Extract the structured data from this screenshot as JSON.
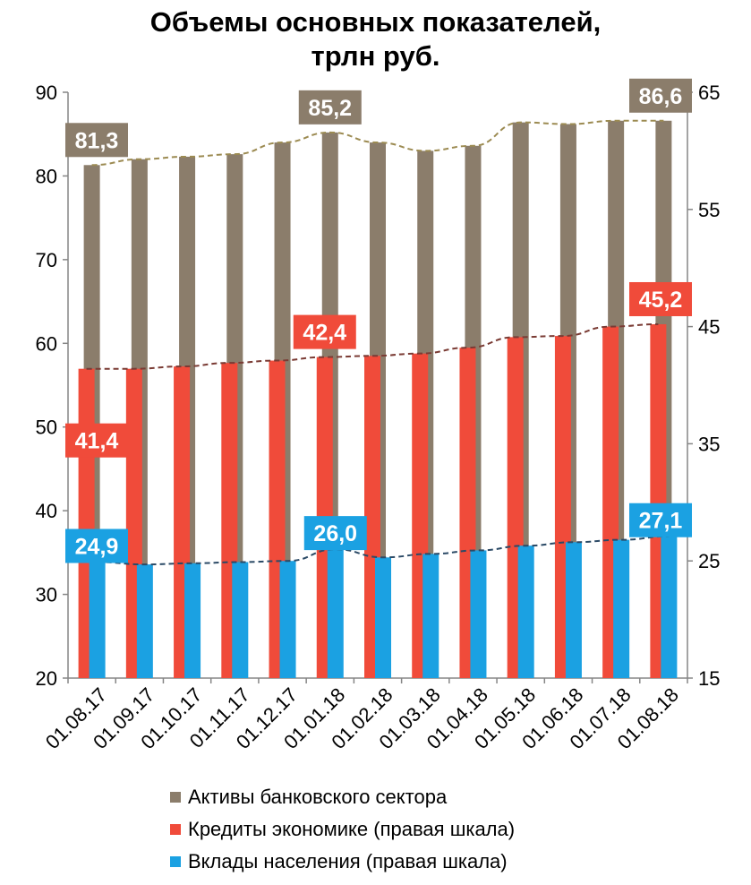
{
  "chart_data": {
    "type": "bar",
    "title_lines": [
      "Объемы основных показателей,",
      "трлн руб."
    ],
    "categories": [
      "01.08.17",
      "01.09.17",
      "01.10.17",
      "01.11.17",
      "01.12.17",
      "01.01.18",
      "01.02.18",
      "01.03.18",
      "01.04.18",
      "01.05.18",
      "01.06.18",
      "01.07.18",
      "01.08.18"
    ],
    "left_axis": {
      "ylim": [
        20,
        90
      ],
      "ticks": [
        "20",
        "30",
        "40",
        "50",
        "60",
        "70",
        "80",
        "90"
      ]
    },
    "right_axis": {
      "ylim": [
        15,
        65
      ],
      "ticks": [
        "15",
        "25",
        "35",
        "45",
        "55",
        "65"
      ]
    },
    "series": [
      {
        "name": "Активы банковского сектора",
        "axis": "left",
        "color": "#8b7d6b",
        "values": [
          81.3,
          82.0,
          82.3,
          82.6,
          84.0,
          85.2,
          84.0,
          83.0,
          83.6,
          86.4,
          86.2,
          86.6,
          86.6
        ],
        "labels": [
          {
            "index": 0,
            "text": "81,3"
          },
          {
            "index": 5,
            "text": "85,2"
          },
          {
            "index": 12,
            "text": "86,6"
          }
        ]
      },
      {
        "name": "Кредиты экономике (правая шкала)",
        "axis": "right",
        "color": "#f04b3a",
        "values": [
          41.4,
          41.4,
          41.6,
          41.9,
          42.1,
          42.4,
          42.5,
          42.7,
          43.2,
          44.1,
          44.2,
          45.0,
          45.2
        ],
        "labels": [
          {
            "index": 0,
            "text": "41,4"
          },
          {
            "index": 5,
            "text": "42,4"
          },
          {
            "index": 12,
            "text": "45,2"
          }
        ]
      },
      {
        "name": "Вклады населения (правая шкала)",
        "axis": "right",
        "color": "#1ba1e2",
        "values": [
          24.9,
          24.7,
          24.8,
          24.9,
          25.0,
          26.0,
          25.3,
          25.6,
          25.9,
          26.3,
          26.6,
          26.8,
          27.1
        ],
        "labels": [
          {
            "index": 0,
            "text": "24,9"
          },
          {
            "index": 5,
            "text": "26,0"
          },
          {
            "index": 12,
            "text": "27,1"
          }
        ]
      }
    ],
    "trendlines": true,
    "grid": false,
    "legend_position": "bottom"
  }
}
